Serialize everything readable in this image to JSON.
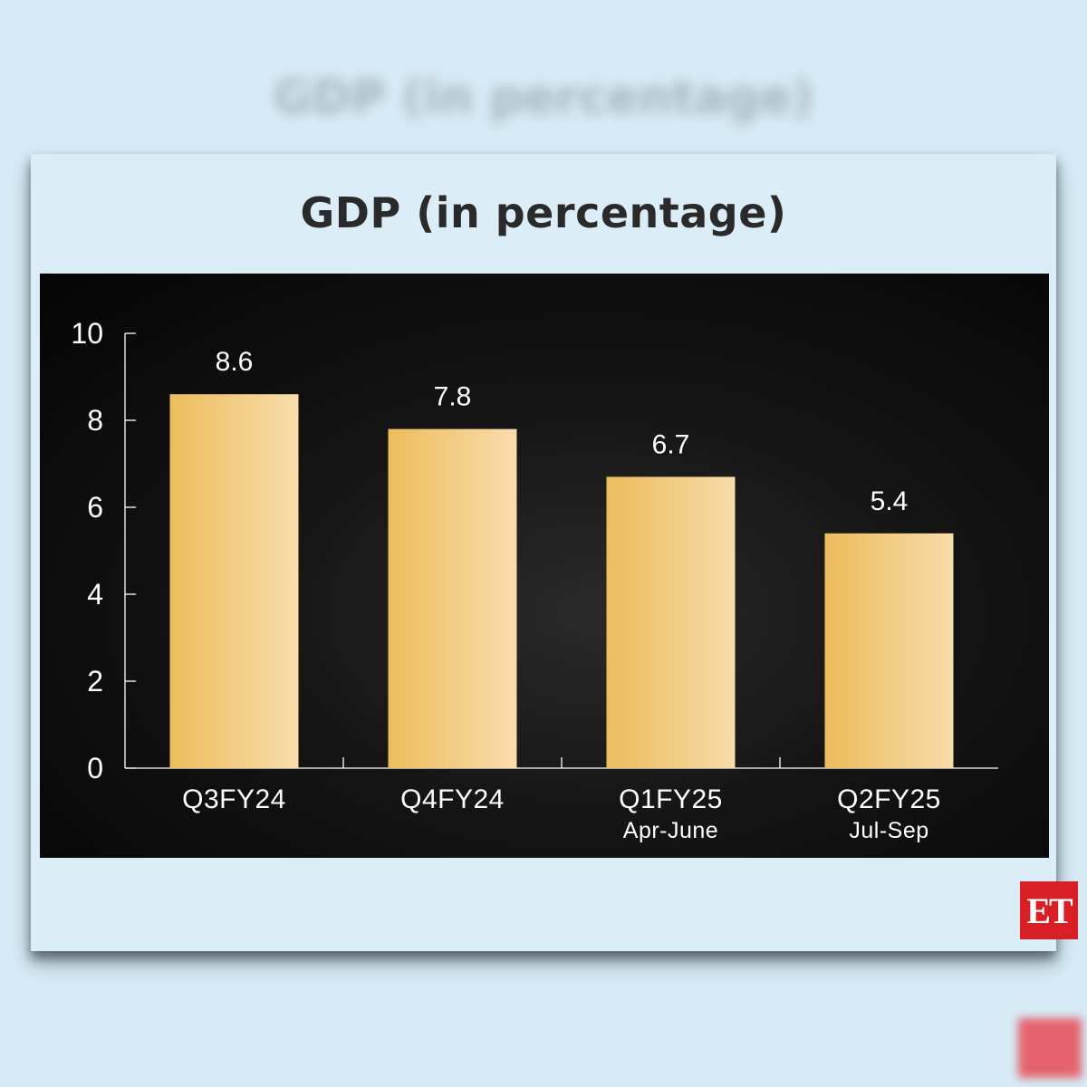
{
  "page": {
    "ghost_title": "GDP (in percentage)",
    "logo_text": "ET",
    "colors": {
      "background": "#d6ebf6",
      "panel": "#0b0b0b",
      "bar_left": "#edbd5c",
      "bar_right": "#f8dcab",
      "axis": "#ffffff",
      "logo": "#d81f26"
    }
  },
  "chart_data": {
    "type": "bar",
    "title": "GDP (in percentage)",
    "categories": [
      "Q3FY24",
      "Q4FY24",
      "Q1FY25",
      "Q2FY25"
    ],
    "subcategories": [
      "",
      "",
      "Apr-June",
      "Jul-Sep"
    ],
    "values": [
      8.6,
      7.8,
      6.7,
      5.4
    ],
    "value_labels": [
      "8.6",
      "7.8",
      "6.7",
      "5.4"
    ],
    "ylim": [
      0,
      10
    ],
    "yticks": [
      0,
      2,
      4,
      6,
      8,
      10
    ],
    "xlabel": "",
    "ylabel": "",
    "grid": false,
    "legend": "none"
  }
}
